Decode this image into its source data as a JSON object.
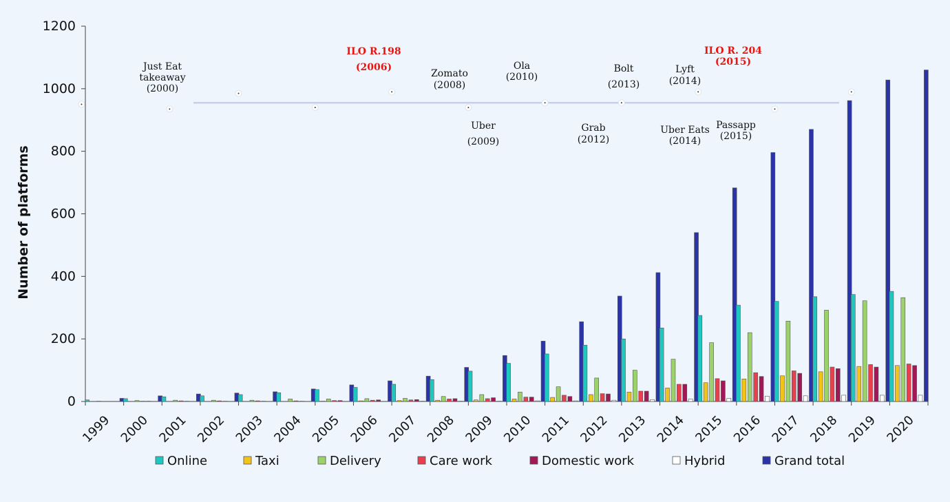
{
  "chart_data": {
    "type": "bar",
    "ylabel": "Number of platforms",
    "xlabel": "",
    "ylim": [
      0,
      1200
    ],
    "yticks": [
      0,
      200,
      400,
      600,
      800,
      1000,
      1200
    ],
    "categories": [
      "1999",
      "2000",
      "2001",
      "2002",
      "2003",
      "2004",
      "2005",
      "2006",
      "2007",
      "2008",
      "2009",
      "2010",
      "2011",
      "2012",
      "2013",
      "2014",
      "2015",
      "2016",
      "2017",
      "2018",
      "2019",
      "2020"
    ],
    "series": [
      {
        "name": "Online",
        "color": "#1ec8c0",
        "values": [
          5,
          9,
          15,
          18,
          22,
          28,
          38,
          45,
          55,
          70,
          97,
          122,
          152,
          180,
          200,
          235,
          275,
          308,
          320,
          335,
          342,
          352
        ]
      },
      {
        "name": "Taxi",
        "color": "#f2c318",
        "values": [
          0,
          0,
          0,
          0,
          0,
          0,
          1,
          2,
          3,
          4,
          5,
          8,
          13,
          22,
          30,
          43,
          60,
          72,
          82,
          95,
          112,
          115
        ]
      },
      {
        "name": "Delivery",
        "color": "#9bd36a",
        "values": [
          1,
          3,
          4,
          4,
          4,
          8,
          8,
          9,
          10,
          16,
          22,
          30,
          47,
          75,
          100,
          135,
          188,
          220,
          257,
          292,
          322,
          332
        ]
      },
      {
        "name": "Care work",
        "color": "#e8404c",
        "values": [
          0,
          1,
          2,
          2,
          2,
          2,
          3,
          4,
          5,
          8,
          9,
          14,
          20,
          25,
          33,
          55,
          73,
          92,
          98,
          110,
          118,
          120
        ]
      },
      {
        "name": "Domestic work",
        "color": "#a01855",
        "values": [
          0,
          1,
          1,
          1,
          1,
          1,
          3,
          5,
          6,
          9,
          12,
          14,
          16,
          24,
          33,
          55,
          66,
          80,
          90,
          105,
          110,
          115
        ]
      },
      {
        "name": "Hybrid",
        "color": "#ffffff",
        "values": [
          0,
          0,
          0,
          0,
          0,
          0,
          0,
          0,
          1,
          1,
          1,
          2,
          2,
          4,
          6,
          8,
          10,
          17,
          18,
          20,
          20,
          20
        ]
      },
      {
        "name": "Grand total",
        "color": "#2934a8",
        "values": [
          10,
          18,
          24,
          27,
          31,
          40,
          53,
          66,
          81,
          109,
          147,
          193,
          255,
          337,
          412,
          540,
          683,
          796,
          870,
          962,
          1028,
          1060
        ]
      }
    ],
    "annotations": [
      {
        "label": "Just Eat takeaway (2000)",
        "lines": [
          "Just Eat",
          "takeaway",
          "(2000)"
        ],
        "year": "2000",
        "highlight": false
      },
      {
        "label": "ILO R.198 (2006)",
        "lines": [
          "ILO R.198",
          "(2006)"
        ],
        "year": "2006",
        "highlight": true
      },
      {
        "label": "Zomato (2008)",
        "lines": [
          "Zomato",
          "(2008)"
        ],
        "year": "2008",
        "highlight": false
      },
      {
        "label": "Uber (2009)",
        "lines": [
          "Uber",
          "(2009)"
        ],
        "year": "2009",
        "highlight": false
      },
      {
        "label": "Ola (2010)",
        "lines": [
          "Ola",
          "(2010)"
        ],
        "year": "2010",
        "highlight": false
      },
      {
        "label": "Grab (2012)",
        "lines": [
          "Grab",
          "(2012)"
        ],
        "year": "2012",
        "highlight": false
      },
      {
        "label": "Bolt (2013)",
        "lines": [
          "Bolt",
          "(2013)"
        ],
        "year": "2013",
        "highlight": false
      },
      {
        "label": "Lyft (2014)",
        "lines": [
          "Lyft",
          "(2014)"
        ],
        "year": "2014",
        "highlight": false
      },
      {
        "label": "Uber Eats (2014)",
        "lines": [
          "Uber Eats",
          "(2014)"
        ],
        "year": "2014",
        "highlight": false
      },
      {
        "label": "ILO R. 204 (2015)",
        "lines": [
          "ILO R. 204",
          "(2015)"
        ],
        "year": "2015",
        "highlight": true
      },
      {
        "label": "Passapp (2015)",
        "lines": [
          "Passapp",
          "(2015)"
        ],
        "year": "2015",
        "highlight": false
      }
    ],
    "legend_position": "bottom"
  },
  "colors": {
    "background": "#eef5fc",
    "timeline": "#c7d0ea",
    "annotation_red": "#e8140f"
  }
}
